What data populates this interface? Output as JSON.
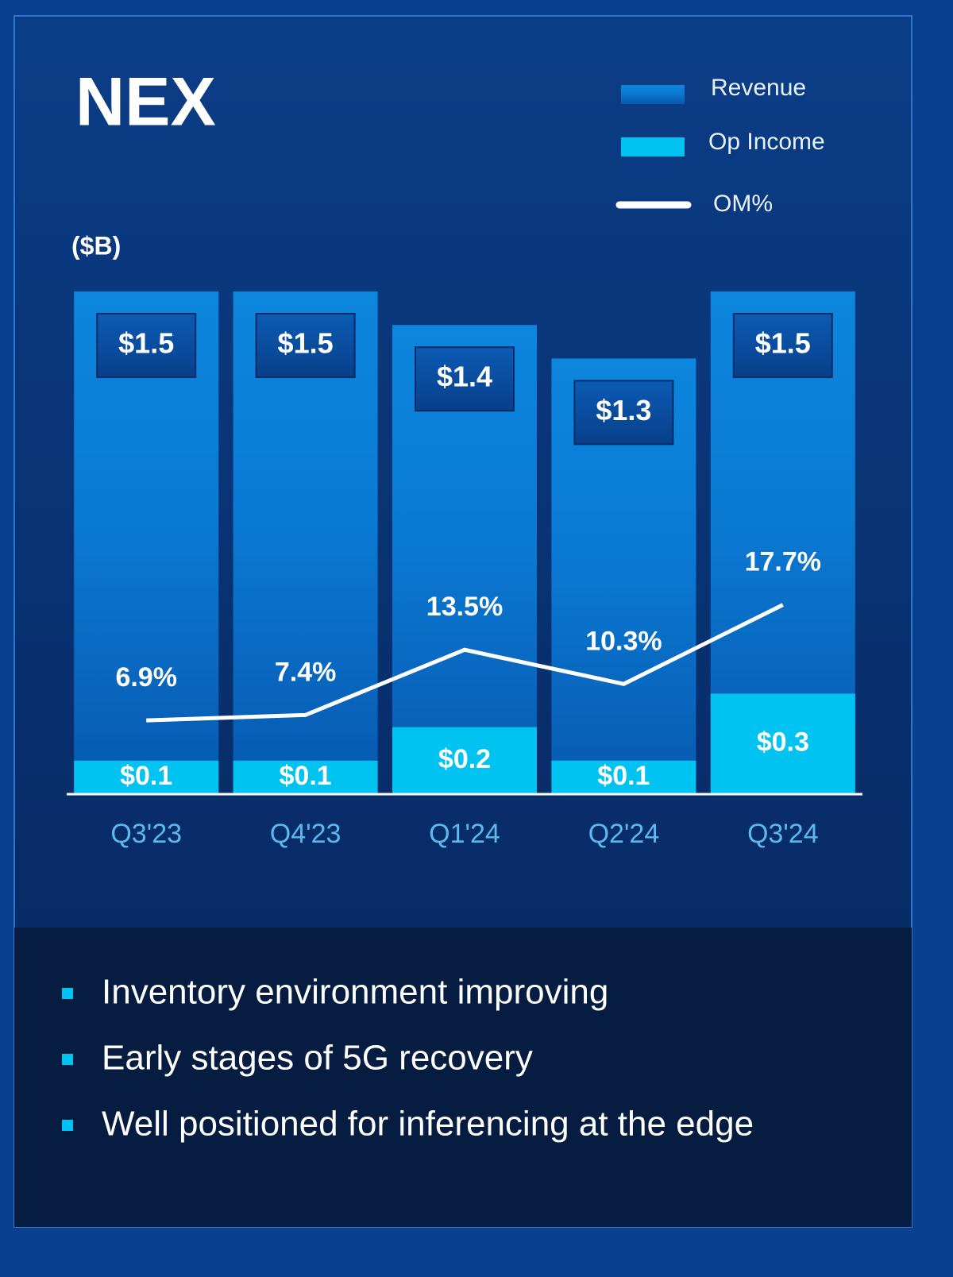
{
  "chart_data": {
    "type": "bar",
    "title": "NEX",
    "unit_label": "($B)",
    "categories": [
      "Q3'23",
      "Q4'23",
      "Q1'24",
      "Q2'24",
      "Q3'24"
    ],
    "series": [
      {
        "name": "Revenue",
        "color": "#0a78d4",
        "values": [
          1.5,
          1.5,
          1.4,
          1.3,
          1.5
        ],
        "value_labels": [
          "$1.5",
          "$1.5",
          "$1.4",
          "$1.3",
          "$1.5"
        ]
      },
      {
        "name": "Op Income",
        "color": "#00c3f2",
        "values": [
          0.1,
          0.1,
          0.2,
          0.1,
          0.3
        ],
        "value_labels": [
          "$0.1",
          "$0.1",
          "$0.2",
          "$0.1",
          "$0.3"
        ]
      },
      {
        "name": "OM%",
        "type": "line",
        "axis": "y2",
        "color": "#ffffff",
        "values": [
          6.9,
          7.4,
          13.5,
          10.3,
          17.7
        ],
        "value_labels": [
          "6.9%",
          "7.4%",
          "13.5%",
          "10.3%",
          "17.7%"
        ]
      }
    ],
    "ylim": [
      0,
      1.5
    ],
    "y2lim": [
      0,
      47
    ],
    "legend": "top-right"
  },
  "bullets": [
    "Inventory environment improving",
    "Early stages of 5G recovery",
    "Well positioned for inferencing at the edge"
  ]
}
